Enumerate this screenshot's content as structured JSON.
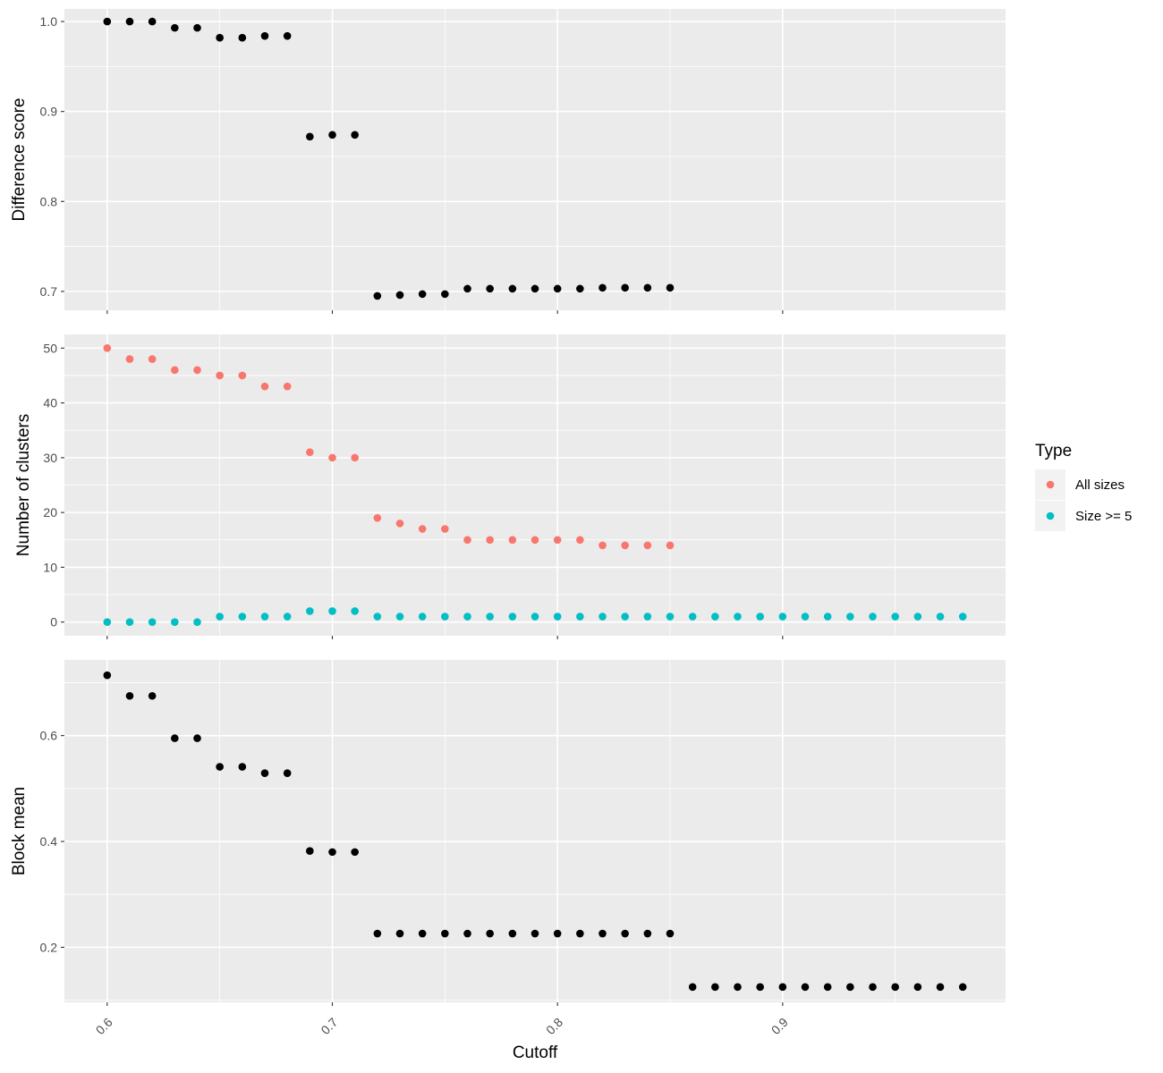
{
  "chart_data": [
    {
      "type": "scatter",
      "panel": "top",
      "ylabel": "Difference score",
      "xlim": [
        0.581,
        0.999
      ],
      "ylim": [
        0.679,
        1.014
      ],
      "yticks": [
        0.7,
        0.8,
        0.9,
        1.0
      ],
      "ytick_labels": [
        "0.7",
        "0.8",
        "0.9",
        "1.0"
      ],
      "series": [
        {
          "color": "#000000",
          "x": [
            0.6,
            0.61,
            0.62,
            0.63,
            0.64,
            0.65,
            0.66,
            0.67,
            0.68,
            0.69,
            0.7,
            0.71,
            0.72,
            0.73,
            0.74,
            0.75,
            0.76,
            0.77,
            0.78,
            0.79,
            0.8,
            0.81,
            0.82,
            0.83,
            0.84,
            0.85
          ],
          "y": [
            1.0,
            1.0,
            1.0,
            0.993,
            0.993,
            0.982,
            0.982,
            0.984,
            0.984,
            0.872,
            0.874,
            0.874,
            0.695,
            0.696,
            0.697,
            0.697,
            0.703,
            0.703,
            0.703,
            0.703,
            0.703,
            0.703,
            0.704,
            0.704,
            0.704,
            0.704
          ]
        }
      ]
    },
    {
      "type": "scatter",
      "panel": "middle",
      "ylabel": "Number of clusters",
      "xlim": [
        0.581,
        0.999
      ],
      "ylim": [
        -2.5,
        52.5
      ],
      "yticks": [
        0,
        10,
        20,
        30,
        40,
        50
      ],
      "ytick_labels": [
        "0",
        "10",
        "20",
        "30",
        "40",
        "50"
      ],
      "legend": {
        "title": "Type",
        "position": "right",
        "entries": [
          {
            "label": "All sizes",
            "color": "#F8766D"
          },
          {
            "label": "Size >= 5",
            "color": "#00BFC4"
          }
        ]
      },
      "series": [
        {
          "name": "All sizes",
          "color": "#F8766D",
          "x": [
            0.6,
            0.61,
            0.62,
            0.63,
            0.64,
            0.65,
            0.66,
            0.67,
            0.68,
            0.69,
            0.7,
            0.71,
            0.72,
            0.73,
            0.74,
            0.75,
            0.76,
            0.77,
            0.78,
            0.79,
            0.8,
            0.81,
            0.82,
            0.83,
            0.84,
            0.85
          ],
          "y": [
            50,
            48,
            48,
            46,
            46,
            45,
            45,
            43,
            43,
            31,
            30,
            30,
            19,
            18,
            17,
            17,
            15,
            15,
            15,
            15,
            15,
            15,
            14,
            14,
            14,
            14
          ]
        },
        {
          "name": "Size >= 5",
          "color": "#00BFC4",
          "x": [
            0.6,
            0.61,
            0.62,
            0.63,
            0.64,
            0.65,
            0.66,
            0.67,
            0.68,
            0.69,
            0.7,
            0.71,
            0.72,
            0.73,
            0.74,
            0.75,
            0.76,
            0.77,
            0.78,
            0.79,
            0.8,
            0.81,
            0.82,
            0.83,
            0.84,
            0.85,
            0.86,
            0.87,
            0.88,
            0.89,
            0.9,
            0.91,
            0.92,
            0.93,
            0.94,
            0.95,
            0.96,
            0.97,
            0.98
          ],
          "y": [
            0,
            0,
            0,
            0,
            0,
            1,
            1,
            1,
            1,
            2,
            2,
            2,
            1,
            1,
            1,
            1,
            1,
            1,
            1,
            1,
            1,
            1,
            1,
            1,
            1,
            1,
            1,
            1,
            1,
            1,
            1,
            1,
            1,
            1,
            1,
            1,
            1,
            1,
            1
          ]
        }
      ]
    },
    {
      "type": "scatter",
      "panel": "bottom",
      "ylabel": "Block mean",
      "xlabel": "Cutoff",
      "xlim": [
        0.581,
        0.999
      ],
      "xticks": [
        0.6,
        0.7,
        0.8,
        0.9
      ],
      "xtick_labels": [
        "0.6",
        "0.7",
        "0.8",
        "0.9"
      ],
      "ylim": [
        0.096,
        0.743
      ],
      "yticks": [
        0.2,
        0.4,
        0.6
      ],
      "ytick_labels": [
        "0.2",
        "0.4",
        "0.6"
      ],
      "series": [
        {
          "color": "#000000",
          "x": [
            0.6,
            0.61,
            0.62,
            0.63,
            0.64,
            0.65,
            0.66,
            0.67,
            0.68,
            0.69,
            0.7,
            0.71,
            0.72,
            0.73,
            0.74,
            0.75,
            0.76,
            0.77,
            0.78,
            0.79,
            0.8,
            0.81,
            0.82,
            0.83,
            0.84,
            0.85,
            0.86,
            0.87,
            0.88,
            0.89,
            0.9,
            0.91,
            0.92,
            0.93,
            0.94,
            0.95,
            0.96,
            0.97,
            0.98
          ],
          "y": [
            0.714,
            0.675,
            0.675,
            0.595,
            0.595,
            0.541,
            0.541,
            0.529,
            0.529,
            0.382,
            0.38,
            0.38,
            0.226,
            0.226,
            0.226,
            0.226,
            0.226,
            0.226,
            0.226,
            0.226,
            0.226,
            0.226,
            0.226,
            0.226,
            0.226,
            0.226,
            0.125,
            0.125,
            0.125,
            0.125,
            0.125,
            0.125,
            0.125,
            0.125,
            0.125,
            0.125,
            0.125,
            0.125,
            0.125
          ]
        }
      ]
    }
  ]
}
